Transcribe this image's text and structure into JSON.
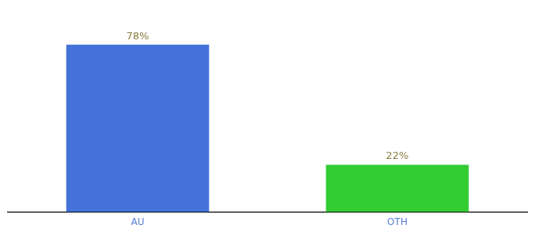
{
  "chart_data": {
    "type": "bar",
    "categories": [
      "AU",
      "OTH"
    ],
    "values": [
      78,
      22
    ],
    "value_labels": [
      "78%",
      "22%"
    ],
    "colors": [
      "#4472d9",
      "#33cc33"
    ],
    "ylim": [
      0,
      90
    ],
    "grid": false,
    "data_labels": true,
    "tick_labels": "x"
  }
}
